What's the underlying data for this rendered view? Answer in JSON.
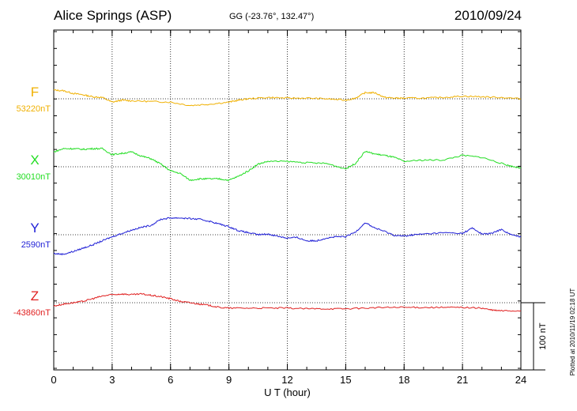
{
  "header": {
    "station": "Alice Springs (ASP)",
    "coords": "GG (-23.76°, 132.47°)",
    "date": "2010/09/24"
  },
  "footer": {
    "plotted": "Plotted at 2010/11/19 02:18 UT"
  },
  "scale": {
    "label": "100 nT",
    "value_nT": 100
  },
  "chart_data": {
    "type": "line",
    "xlabel": "U T (hour)",
    "xlim": [
      0,
      24
    ],
    "xticks": [
      0,
      3,
      6,
      9,
      12,
      15,
      18,
      21,
      24
    ],
    "grid": true,
    "series": [
      {
        "name": "F",
        "baseline_label": "53220nT",
        "color": "#f0b000",
        "points": [
          [
            0,
            13
          ],
          [
            0.5,
            12
          ],
          [
            1,
            8
          ],
          [
            1.5,
            6
          ],
          [
            2,
            3
          ],
          [
            2.5,
            2
          ],
          [
            3,
            -5
          ],
          [
            3.5,
            -2
          ],
          [
            4,
            -3
          ],
          [
            5,
            -4
          ],
          [
            6,
            -5
          ],
          [
            7,
            -10
          ],
          [
            8,
            -8
          ],
          [
            9,
            -5
          ],
          [
            9.5,
            -2
          ],
          [
            10,
            0
          ],
          [
            11,
            2
          ],
          [
            12,
            1
          ],
          [
            13,
            1
          ],
          [
            14,
            0
          ],
          [
            15,
            -2
          ],
          [
            15.5,
            1
          ],
          [
            16,
            9
          ],
          [
            16.5,
            9
          ],
          [
            17,
            2
          ],
          [
            17.5,
            1
          ],
          [
            18,
            1
          ],
          [
            19,
            1
          ],
          [
            20,
            2
          ],
          [
            21,
            4
          ],
          [
            22,
            3
          ],
          [
            23,
            2
          ],
          [
            24,
            0
          ]
        ]
      },
      {
        "name": "X",
        "baseline_label": "30010nT",
        "color": "#22dd22",
        "points": [
          [
            0,
            22
          ],
          [
            0.5,
            27
          ],
          [
            1,
            27
          ],
          [
            1.5,
            26
          ],
          [
            2,
            27
          ],
          [
            2.5,
            27
          ],
          [
            3,
            18
          ],
          [
            3.5,
            20
          ],
          [
            4,
            22
          ],
          [
            4.5,
            16
          ],
          [
            5,
            12
          ],
          [
            5.5,
            4
          ],
          [
            6,
            -6
          ],
          [
            6.5,
            -10
          ],
          [
            7,
            -20
          ],
          [
            7.5,
            -18
          ],
          [
            8,
            -18
          ],
          [
            8.5,
            -18
          ],
          [
            9,
            -20
          ],
          [
            9.5,
            -14
          ],
          [
            10,
            -6
          ],
          [
            10.5,
            4
          ],
          [
            11,
            8
          ],
          [
            12,
            8
          ],
          [
            13,
            6
          ],
          [
            14,
            5
          ],
          [
            15,
            -3
          ],
          [
            15.5,
            5
          ],
          [
            16,
            23
          ],
          [
            16.5,
            19
          ],
          [
            17,
            17
          ],
          [
            17.5,
            14
          ],
          [
            18,
            8
          ],
          [
            19,
            10
          ],
          [
            20,
            10
          ],
          [
            21,
            17
          ],
          [
            22,
            14
          ],
          [
            23,
            5
          ],
          [
            23.5,
            1
          ],
          [
            24,
            -2
          ]
        ]
      },
      {
        "name": "Y",
        "baseline_label": "2590nT",
        "color": "#1f1fd6",
        "points": [
          [
            0,
            -28
          ],
          [
            0.5,
            -29
          ],
          [
            1,
            -25
          ],
          [
            1.5,
            -20
          ],
          [
            2,
            -15
          ],
          [
            2.5,
            -9
          ],
          [
            3,
            -3
          ],
          [
            3.5,
            2
          ],
          [
            4,
            7
          ],
          [
            4.5,
            11
          ],
          [
            5,
            14
          ],
          [
            5.5,
            23
          ],
          [
            6,
            25
          ],
          [
            6.5,
            25
          ],
          [
            7,
            24
          ],
          [
            7.5,
            23
          ],
          [
            8,
            20
          ],
          [
            8.5,
            16
          ],
          [
            9,
            12
          ],
          [
            9.5,
            6
          ],
          [
            10,
            3
          ],
          [
            10.5,
            0
          ],
          [
            11,
            1
          ],
          [
            11.5,
            -2
          ],
          [
            12,
            -5
          ],
          [
            12.5,
            -4
          ],
          [
            13,
            -9
          ],
          [
            13.5,
            -9
          ],
          [
            14,
            -5
          ],
          [
            14.5,
            -3
          ],
          [
            15,
            -3
          ],
          [
            15.5,
            4
          ],
          [
            16,
            18
          ],
          [
            16.5,
            10
          ],
          [
            17,
            5
          ],
          [
            17.5,
            -1
          ],
          [
            18,
            -2
          ],
          [
            18.5,
            0
          ],
          [
            19,
            1
          ],
          [
            20,
            3
          ],
          [
            21,
            2
          ],
          [
            21.5,
            10
          ],
          [
            22,
            1
          ],
          [
            22.5,
            2
          ],
          [
            23,
            8
          ],
          [
            23.5,
            0
          ],
          [
            24,
            -3
          ]
        ]
      },
      {
        "name": "Z",
        "baseline_label": "-43860nT",
        "color": "#e02020",
        "points": [
          [
            0,
            -5
          ],
          [
            0.5,
            -2
          ],
          [
            1,
            0
          ],
          [
            1.5,
            2
          ],
          [
            2,
            6
          ],
          [
            2.5,
            10
          ],
          [
            3,
            12
          ],
          [
            3.5,
            13
          ],
          [
            4,
            12
          ],
          [
            4.5,
            13
          ],
          [
            5,
            11
          ],
          [
            5.5,
            9
          ],
          [
            6,
            6
          ],
          [
            6.5,
            2
          ],
          [
            7,
            0
          ],
          [
            7.5,
            -2
          ],
          [
            8,
            -4
          ],
          [
            8.5,
            -7
          ],
          [
            9,
            -8
          ],
          [
            10,
            -8
          ],
          [
            11,
            -8
          ],
          [
            12,
            -8
          ],
          [
            13,
            -9
          ],
          [
            14,
            -9
          ],
          [
            15,
            -9
          ],
          [
            16,
            -8
          ],
          [
            17,
            -7
          ],
          [
            18,
            -7
          ],
          [
            19,
            -7
          ],
          [
            20,
            -7
          ],
          [
            21,
            -7
          ],
          [
            22,
            -8
          ],
          [
            22.5,
            -11
          ],
          [
            23,
            -12
          ],
          [
            24,
            -12
          ]
        ]
      }
    ]
  }
}
